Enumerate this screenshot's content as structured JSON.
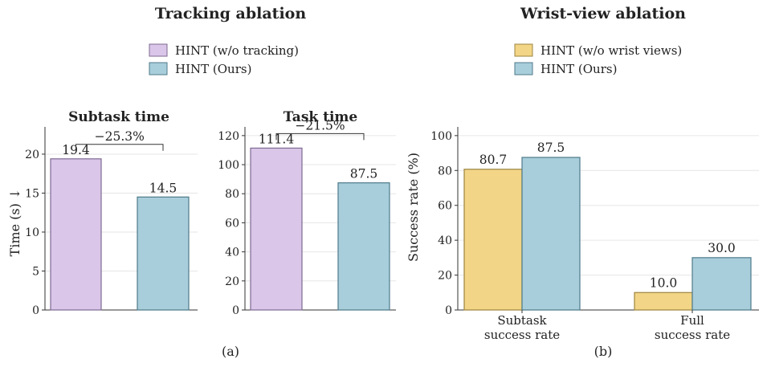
{
  "colors": {
    "purple": "#d9c6e8",
    "purple_edge": "#7f6a92",
    "blue": "#a9cedb",
    "blue_edge": "#4e7a8a",
    "yellow": "#f2d586",
    "yellow_edge": "#9c8440"
  },
  "left_panel": {
    "title": "Tracking ablation",
    "legend": [
      "HINT (w/o tracking)",
      "HINT (Ours)"
    ],
    "caption": "(a)"
  },
  "right_panel": {
    "title": "Wrist-view ablation",
    "legend": [
      "HINT (w/o wrist views)",
      "HINT (Ours)"
    ],
    "caption": "(b)"
  },
  "chart_data": [
    {
      "type": "bar",
      "title": "Subtask time",
      "ylabel": "Time (s) ↓",
      "categories": [
        "HINT (w/o tracking)",
        "HINT (Ours)"
      ],
      "values": [
        19.4,
        14.5
      ],
      "value_labels": [
        "19.4",
        "14.5"
      ],
      "ylim": [
        0,
        23.5
      ],
      "yticks": [
        0,
        5,
        10,
        15,
        20
      ],
      "annotation": "−25.3%",
      "grid": true
    },
    {
      "type": "bar",
      "title": "Task time",
      "ylabel": "",
      "categories": [
        "HINT (w/o tracking)",
        "HINT (Ours)"
      ],
      "values": [
        111.4,
        87.5
      ],
      "value_labels": [
        "111.4",
        "87.5"
      ],
      "ylim": [
        0,
        126
      ],
      "yticks": [
        0,
        20,
        40,
        60,
        80,
        100,
        120
      ],
      "annotation": "−21.5%",
      "grid": true
    },
    {
      "type": "bar",
      "title": "",
      "ylabel": "Success rate (%)",
      "categories": [
        "Subtask\nsuccess rate",
        "Full\nsuccess rate"
      ],
      "series": [
        {
          "name": "HINT (w/o wrist views)",
          "values": [
            80.7,
            10.0
          ],
          "labels": [
            "80.7",
            "10.0"
          ]
        },
        {
          "name": "HINT (Ours)",
          "values": [
            87.5,
            30.0
          ],
          "labels": [
            "87.5",
            "30.0"
          ]
        }
      ],
      "ylim": [
        0,
        105
      ],
      "yticks": [
        0,
        20,
        40,
        60,
        80,
        100
      ],
      "grid": true
    }
  ]
}
